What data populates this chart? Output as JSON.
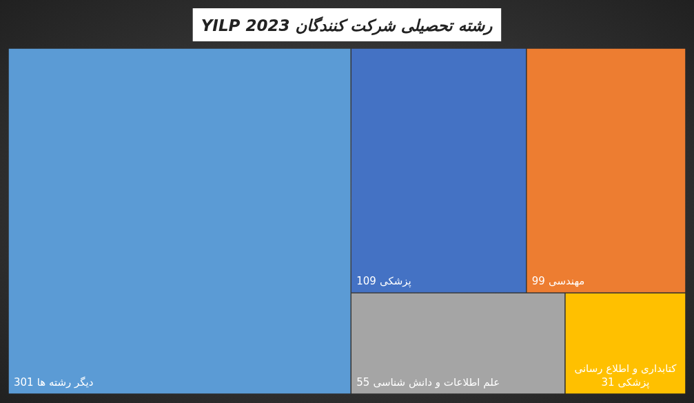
{
  "chart_data": {
    "type": "other",
    "title": "رشته تحصیلی شرکت کنندگان YILP 2023",
    "categories": [
      "دیگر رشته ها",
      "پزشکی",
      "مهندسی",
      "علم اطلاعات و دانش شناسی",
      "کتابداری و اطلاع رسانی پزشکی"
    ],
    "values": [
      301,
      109,
      99,
      55,
      31
    ],
    "colors": [
      "#5b9bd5",
      "#4472c4",
      "#ed7d31",
      "#a5a5a5",
      "#ffc000"
    ],
    "data_labels": true
  }
}
